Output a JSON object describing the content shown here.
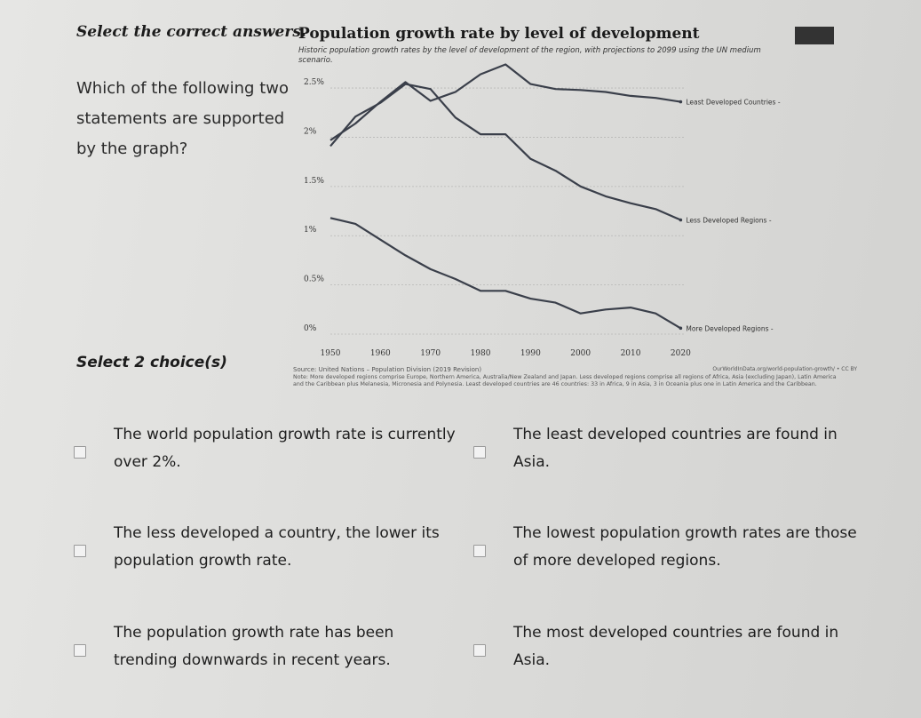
{
  "instruction": "Select the correct answers.",
  "question": "Which of the following two statements are supported by the graph?",
  "select_count": "Select 2 choice(s)",
  "chart_data": {
    "type": "line",
    "title": "Population growth rate by level of development",
    "subtitle": "Historic population growth rates by the level of development of the region, with projections to 2099 using the UN medium scenario.",
    "x": [
      1950,
      1955,
      1960,
      1965,
      1970,
      1975,
      1980,
      1985,
      1990,
      1995,
      2000,
      2005,
      2010,
      2015,
      2020
    ],
    "x_ticks": [
      "1950",
      "1960",
      "1970",
      "1980",
      "1990",
      "2000",
      "2010",
      "2020"
    ],
    "y_ticks": [
      "0%",
      "0.5%",
      "1%",
      "1.5%",
      "2%",
      "2.5%"
    ],
    "xlim": [
      1950,
      2021
    ],
    "ylim": [
      0,
      2.6
    ],
    "grid": true,
    "series": [
      {
        "name": "Least Developed Countries",
        "color": "#3a3f4a",
        "values": [
          1.97,
          2.14,
          2.36,
          2.56,
          2.37,
          2.46,
          2.64,
          2.74,
          2.54,
          2.49,
          2.48,
          2.46,
          2.42,
          2.4,
          2.36
        ]
      },
      {
        "name": "Less Developed Regions",
        "color": "#3a3f4a",
        "values": [
          1.91,
          2.21,
          2.35,
          2.54,
          2.49,
          2.2,
          2.03,
          2.03,
          1.78,
          1.66,
          1.5,
          1.4,
          1.33,
          1.27,
          1.16
        ]
      },
      {
        "name": "More Developed Regions",
        "color": "#3a3f4a",
        "values": [
          1.18,
          1.12,
          0.96,
          0.8,
          0.66,
          0.56,
          0.44,
          0.44,
          0.36,
          0.32,
          0.21,
          0.25,
          0.27,
          0.21,
          0.06
        ]
      }
    ]
  },
  "chart_source": "Source: United Nations – Population Division (2019 Revision)",
  "chart_url": "OurWorldInData.org/world-population-growth/ • CC BY",
  "chart_note": "Note: More developed regions comprise Europe, Northern America, Australia/New Zealand and Japan. Less developed regions comprise all regions of Africa, Asia (excluding Japan), Latin America and the Caribbean plus Melanesia, Micronesia and Polynesia. Least developed countries are 46 countries: 33 in Africa, 9 in Asia, 3 in Oceania plus one in Latin America and the Caribbean.",
  "choices": [
    {
      "label": "The world population growth rate is currently over 2%."
    },
    {
      "label": "The least developed countries are found in Asia."
    },
    {
      "label": "The less developed a country, the lower its population growth rate."
    },
    {
      "label": "The lowest population growth rates are those of more developed regions."
    },
    {
      "label": "The population growth rate has been trending downwards in recent years."
    },
    {
      "label": "The most developed countries are found in Asia."
    }
  ]
}
